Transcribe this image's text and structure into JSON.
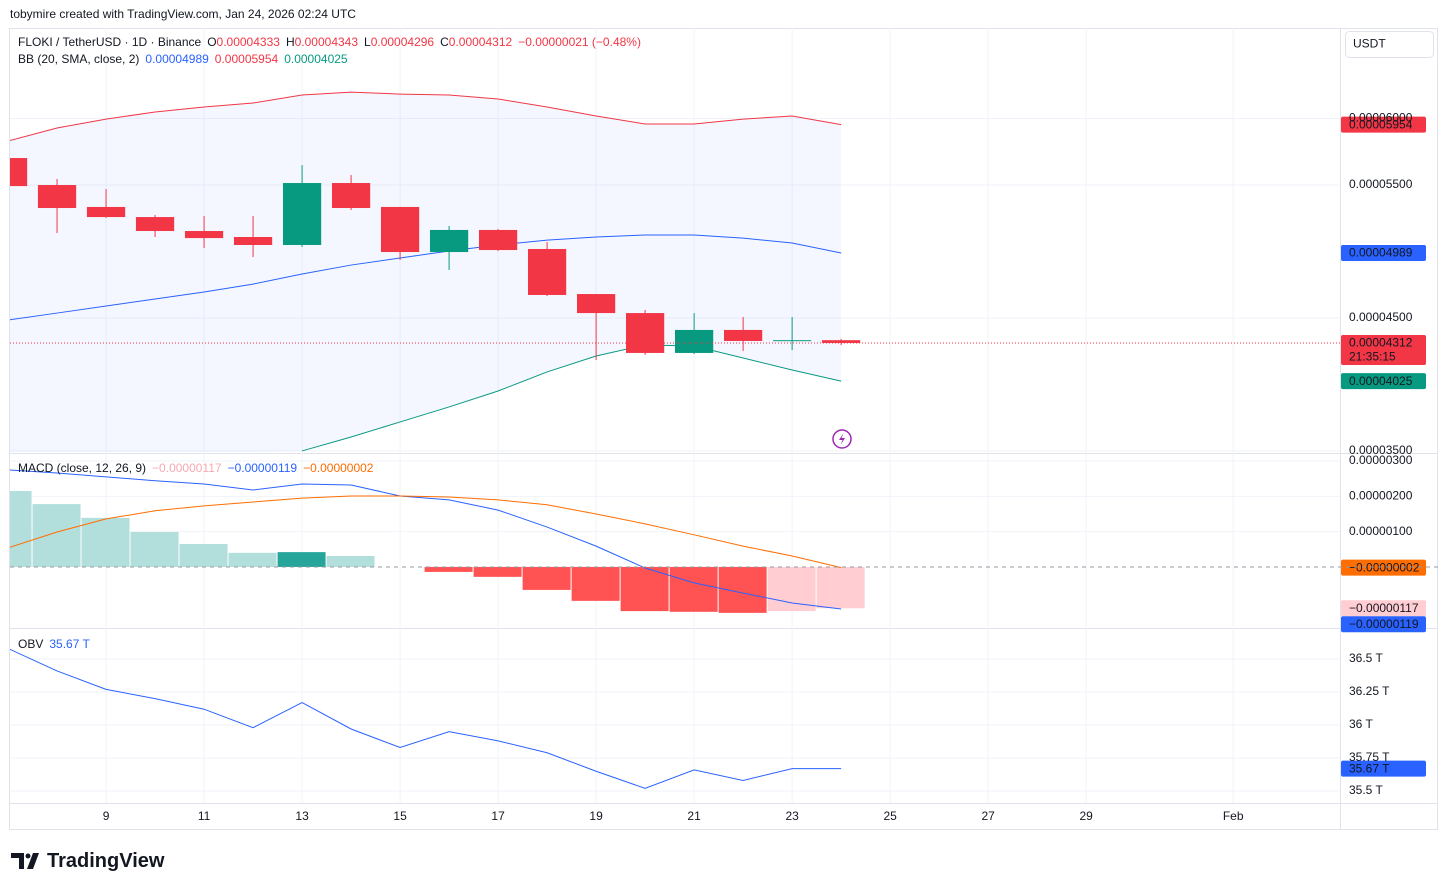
{
  "attribution": "tobymire created with TradingView.com, Jan 24, 2026 02:24 UTC",
  "currency": "USDT",
  "brand": "TradingView",
  "chart_data": [
    {
      "type": "candlestick",
      "title": "FLOKI / TetherUSD · 1D · Binance",
      "header_values": [
        {
          "key": "O",
          "text": "0.00004333"
        },
        {
          "key": "H",
          "text": "0.00004343"
        },
        {
          "key": "L",
          "text": "0.00004296"
        },
        {
          "key": "C",
          "text": "0.00004312"
        }
      ],
      "change": "−0.00000021 (−0.48%)",
      "countdown": "21:35:15",
      "x": [
        7,
        8,
        9,
        10,
        11,
        12,
        13,
        14,
        15,
        16,
        17,
        18,
        19,
        20,
        21,
        22,
        23,
        24
      ],
      "xlim": [
        7.04,
        34.18
      ],
      "open": [
        5.703e-05,
        5.5e-05,
        5.335e-05,
        5.259e-05,
        5.154e-05,
        5.109e-05,
        5.049e-05,
        5.515e-05,
        5.335e-05,
        4.996e-05,
        5.162e-05,
        5.019e-05,
        4.68e-05,
        4.537e-05,
        4.237e-05,
        4.41e-05,
        4.327e-05,
        4.333e-05
      ],
      "high": [
        5.72e-05,
        5.545e-05,
        5.47e-05,
        5.274e-05,
        5.267e-05,
        5.267e-05,
        5.65e-05,
        5.575e-05,
        5.335e-05,
        5.192e-05,
        5.169e-05,
        5.071e-05,
        4.68e-05,
        4.56e-05,
        4.537e-05,
        4.507e-05,
        4.507e-05,
        4.343e-05
      ],
      "low": [
        5.48e-05,
        5.139e-05,
        5.252e-05,
        5.109e-05,
        5.026e-05,
        4.959e-05,
        5.034e-05,
        5.312e-05,
        4.936e-05,
        4.861e-05,
        5.004e-05,
        4.665e-05,
        4.184e-05,
        4.222e-05,
        4.229e-05,
        4.252e-05,
        4.259e-05,
        4.296e-05
      ],
      "close": [
        5.492e-05,
        5.327e-05,
        5.259e-05,
        5.154e-05,
        5.101e-05,
        5.049e-05,
        5.515e-05,
        5.327e-05,
        4.996e-05,
        5.162e-05,
        5.011e-05,
        4.673e-05,
        4.537e-05,
        4.237e-05,
        4.41e-05,
        4.327e-05,
        4.333e-05,
        4.312e-05
      ],
      "colors": {
        "up": "#089981",
        "down": "#f23645"
      },
      "ylim": [
        3.492e-05,
        6.681e-05
      ],
      "yticks": [
        {
          "value": 3.5e-05,
          "label": "0.00003500"
        },
        {
          "value": 4.5e-05,
          "label": "0.00004500"
        },
        {
          "value": 5.5e-05,
          "label": "0.00005500"
        },
        {
          "value": 6e-05,
          "label": "0.00006000"
        }
      ],
      "bands": {
        "name": "BB (20, SMA, close, 2)",
        "series": [
          {
            "color": "#2962ff",
            "value_label": "0.00004989",
            "values": [
              4.485e-05,
              4.537e-05,
              4.59e-05,
              4.643e-05,
              4.695e-05,
              4.755e-05,
              4.831e-05,
              4.898e-05,
              4.951e-05,
              5.004e-05,
              5.049e-05,
              5.086e-05,
              5.109e-05,
              5.124e-05,
              5.124e-05,
              5.101e-05,
              5.064e-05,
              4.989e-05
            ]
          },
          {
            "color": "#f23645",
            "value_label": "0.00005954",
            "values": [
              5.831e-05,
              5.929e-05,
              5.996e-05,
              6.049e-05,
              6.087e-05,
              6.117e-05,
              6.177e-05,
              6.199e-05,
              6.184e-05,
              6.177e-05,
              6.147e-05,
              6.087e-05,
              6.019e-05,
              5.959e-05,
              5.959e-05,
              5.996e-05,
              6.019e-05,
              5.954e-05
            ]
          },
          {
            "color": "#089981",
            "value_label": "0.00004025",
            "values": [
              null,
              null,
              null,
              null,
              null,
              null,
              3.5e-05,
              3.605e-05,
              3.718e-05,
              3.831e-05,
              3.951e-05,
              4.094e-05,
              4.214e-05,
              4.297e-05,
              4.289e-05,
              4.199e-05,
              4.109e-05,
              4.025e-05
            ]
          }
        ]
      }
    },
    {
      "type": "macd",
      "name": "MACD (close, 12, 26, 9)",
      "x": [
        7,
        8,
        9,
        10,
        11,
        12,
        13,
        14,
        15,
        16,
        17,
        18,
        19,
        20,
        21,
        22,
        23,
        24
      ],
      "xlim": [
        7.04,
        34.18
      ],
      "ylim": [
        -1.7e-06,
        3.17e-06
      ],
      "yticks": [
        {
          "value": 1e-06,
          "label": "0.00000100"
        },
        {
          "value": 2e-06,
          "label": "0.00000200"
        },
        {
          "value": 3e-06,
          "label": "0.00000300"
        }
      ],
      "histogram": {
        "value_label": "−0.00000117",
        "values": [
          2.15e-06,
          1.78e-06,
          1.39e-06,
          9.9e-07,
          6.5e-07,
          4e-07,
          4.2e-07,
          3.1e-07,
          0,
          -1.4e-07,
          -2.8e-07,
          -6.5e-07,
          -9.6e-07,
          -1.25e-06,
          -1.27e-06,
          -1.3e-06,
          -1.25e-06,
          -1.17e-06
        ],
        "colors": [
          "#b2dfdb",
          "#b2dfdb",
          "#b2dfdb",
          "#b2dfdb",
          "#b2dfdb",
          "#b2dfdb",
          "#26a69a",
          "#b2dfdb",
          "#b2dfdb",
          "#ff5252",
          "#ff5252",
          "#ff5252",
          "#ff5252",
          "#ff5252",
          "#ff5252",
          "#ff5252",
          "#ffcdd2",
          "#ffcdd2"
        ],
        "label_color": "#f7a9b3"
      },
      "series": [
        {
          "color": "#2962ff",
          "value_label": "−0.00000119",
          "values": [
            2.75e-06,
            2.66e-06,
            2.55e-06,
            2.44e-06,
            2.35e-06,
            2.18e-06,
            2.35e-06,
            2.32e-06,
            2.01e-06,
            1.9e-06,
            1.61e-06,
            1.13e-06,
            5.9e-07,
            -3e-08,
            -4.5e-07,
            -7.4e-07,
            -1.02e-06,
            -1.19e-06
          ]
        },
        {
          "color": "#ff6d00",
          "value_label": "−0.00000002",
          "values": [
            5.4e-07,
            9.9e-07,
            1.36e-06,
            1.59e-06,
            1.73e-06,
            1.84e-06,
            1.95e-06,
            2.01e-06,
            2.01e-06,
            1.98e-06,
            1.9e-06,
            1.76e-06,
            1.5e-06,
            1.22e-06,
            9.1e-07,
            5.9e-07,
            3.1e-07,
            -2e-08
          ]
        }
      ]
    },
    {
      "type": "line",
      "name": "OBV",
      "value_label": "35.67 T",
      "color": "#2962ff",
      "x": [
        7,
        8,
        9,
        10,
        11,
        12,
        13,
        14,
        15,
        16,
        17,
        18,
        19,
        20,
        21,
        22,
        23,
        24
      ],
      "xlim": [
        7.04,
        34.18
      ],
      "values": [
        36.58,
        36.41,
        36.27,
        36.2,
        36.12,
        35.98,
        36.17,
        35.97,
        35.83,
        35.95,
        35.88,
        35.79,
        35.65,
        35.52,
        35.66,
        35.58,
        35.67,
        35.67
      ],
      "ylim": [
        35.417,
        36.72
      ],
      "yticks": [
        {
          "value": 35.5,
          "label": "35.5 T"
        },
        {
          "value": 35.75,
          "label": "35.75 T"
        },
        {
          "value": 36,
          "label": "36 T"
        },
        {
          "value": 36.25,
          "label": "36.25 T"
        },
        {
          "value": 36.5,
          "label": "36.5 T"
        }
      ],
      "xticks": [
        9,
        11,
        13,
        15,
        17,
        19,
        21,
        23,
        25,
        27,
        29,
        {
          "value": 32,
          "label": "Feb"
        }
      ]
    }
  ]
}
